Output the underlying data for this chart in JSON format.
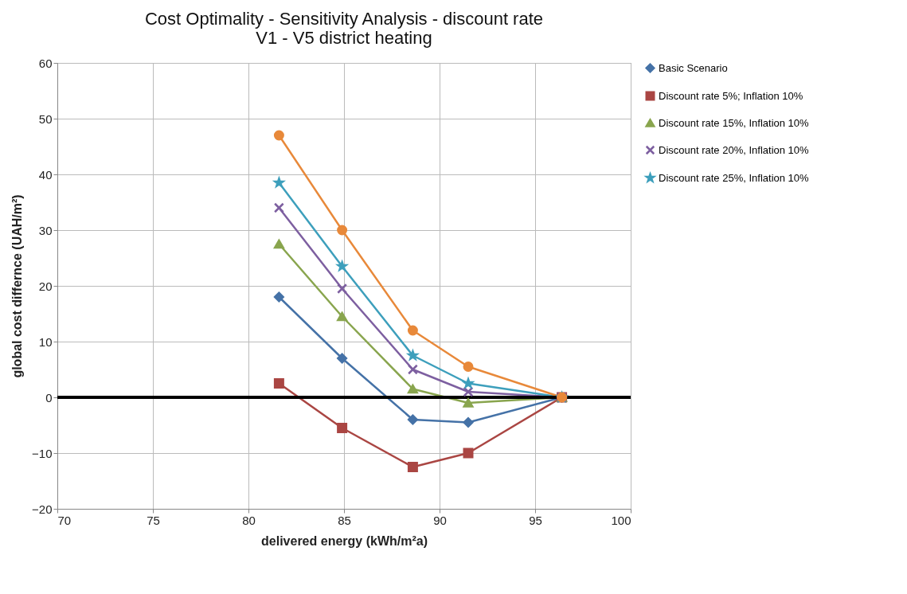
{
  "chart_data": {
    "type": "line",
    "title": "Cost Optimality  - Sensitivity Analysis - discount rate\nV1 - V5 district heating",
    "xlabel": "delivered energy (kWh/m²a)",
    "ylabel": "global cost differnce (UAH/m²)",
    "x": [
      81.6,
      84.9,
      88.6,
      91.5,
      96.4
    ],
    "xlim": [
      70,
      100
    ],
    "xticks": [
      70,
      75,
      80,
      85,
      90,
      95,
      100
    ],
    "ylim": [
      -20,
      60
    ],
    "yticks": [
      -20,
      -10,
      0,
      10,
      20,
      30,
      40,
      50,
      60
    ],
    "grid": true,
    "legend": "right",
    "line_style": "solid",
    "ref_lines": [
      {
        "axis": "y",
        "value": 0,
        "color": "#000000"
      }
    ],
    "series": [
      {
        "name": "Basic Scenario",
        "color": "#4572a7",
        "marker": "diamond",
        "values": [
          18,
          7,
          -4,
          -4.5,
          0
        ]
      },
      {
        "name": "Discount rate 5%; Inflation 10%",
        "color": "#aa4643",
        "marker": "square",
        "values": [
          2.5,
          -5.5,
          -12.5,
          -10,
          0
        ]
      },
      {
        "name": "Discount rate 15%, Inflation 10%",
        "color": "#89a54e",
        "marker": "triangle",
        "values": [
          27.5,
          14.5,
          1.5,
          -1,
          0
        ]
      },
      {
        "name": "Discount rate 20%, Inflation 10%",
        "color": "#7d5fa0",
        "marker": "cross",
        "values": [
          34,
          19.5,
          5,
          1,
          0
        ]
      },
      {
        "name": "Discount rate 25%, Inflation 10%",
        "color": "#3d9fbc",
        "marker": "star",
        "values": [
          38.5,
          23.5,
          7.5,
          2.5,
          0
        ]
      },
      {
        "color": "#e8893a",
        "marker": "circle",
        "values": [
          47,
          30,
          12,
          5.5,
          0
        ]
      }
    ]
  }
}
